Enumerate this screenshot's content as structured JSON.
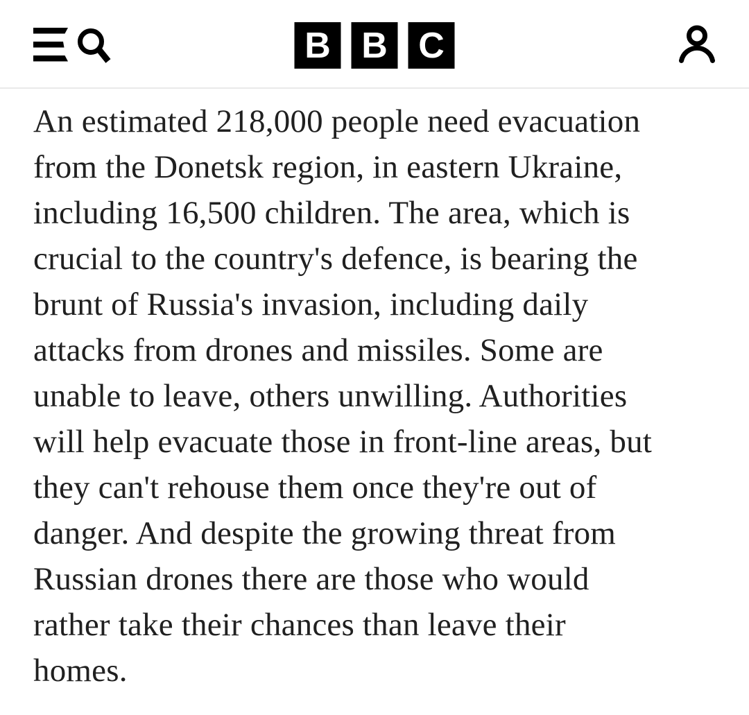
{
  "page": {
    "colors": {
      "background": "#ffffff",
      "text": "#202020",
      "icon": "#000000",
      "logo_block_bg": "#000000",
      "logo_letter": "#ffffff",
      "divider": "#e9e9e9"
    }
  },
  "header": {
    "left_icon": "menu-search-icon",
    "right_icon": "account-icon",
    "logo_blocks": [
      "B",
      "B",
      "C"
    ]
  },
  "article": {
    "paragraph": "An estimated 218,000 people need evacuation from the Donetsk region, in eastern Ukraine, including 16,500 children. The area, which is crucial to the country's defence, is bearing the brunt of Russia's invasion, including daily attacks from drones and missiles. Some are unable to leave, others unwilling. Authorities will help evacuate those in front-line areas, but they can't rehouse them once they're out of danger. And despite the growing threat from Russian drones there are those who would rather take their chances than leave their homes.",
    "lines": [
      "An estimated 218,000 people need evacuation",
      "from the Donetsk region, in eastern Ukraine,",
      "including 16,500 children. The area, which is",
      "crucial to the country's defence, is bearing the",
      "brunt of Russia's invasion, including daily",
      "attacks from drones and missiles. Some are",
      "unable to leave, others unwilling. Authorities",
      "will help evacuate those in front-line areas, but",
      "they can't rehouse them once they're out of",
      "danger. And despite the growing threat from",
      "Russian drones there are those who would",
      "rather take their chances than leave their",
      "homes."
    ]
  }
}
